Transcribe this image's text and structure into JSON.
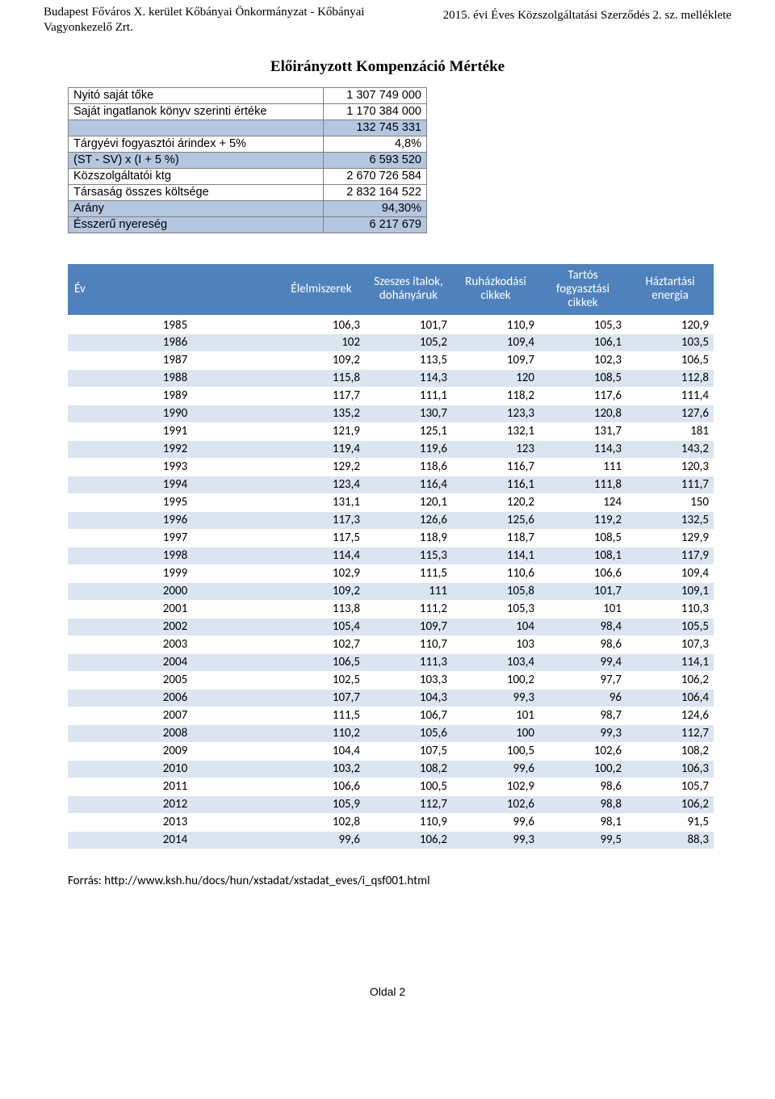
{
  "header": {
    "left": "Budapest Főváros X. kerület Kőbányai Önkormányzat - Kőbányai Vagyonkezelő Zrt.",
    "right": "2015. évi Éves Közszolgáltatási Szerződés 2. sz. melléklete"
  },
  "title": "Előirányzott Kompenzáció Mértéke",
  "summary": {
    "rows": [
      {
        "label": "Nyitó saját tőke",
        "value": "1 307 749 000",
        "highlight": false
      },
      {
        "label": "Saját ingatlanok könyv szerinti értéke",
        "value": "1 170 384 000",
        "highlight": false
      },
      {
        "label": "",
        "value": "132 745 331",
        "highlight": true
      },
      {
        "label": "Tárgyévi fogyasztói árindex + 5%",
        "value": "4,8%",
        "highlight": false
      },
      {
        "label": "(ST - SV) x (I + 5 %)",
        "value": "6 593 520",
        "highlight": true
      },
      {
        "label": "Közszolgáltatói ktg",
        "value": "2 670 726 584",
        "highlight": false
      },
      {
        "label": "Társaság összes költsége",
        "value": "2 832 164 522",
        "highlight": false
      },
      {
        "label": "Arány",
        "value": "94,30%",
        "highlight": true
      },
      {
        "label": "Ésszerű nyereség",
        "value": "6 217 679",
        "highlight": true
      }
    ]
  },
  "dataTable": {
    "columns": [
      "Év",
      "Élelmiszerek",
      "Szeszes italok, dohányáruk",
      "Ruházkodási cikkek",
      "Tartós fogyasztási cikkek",
      "Háztartási energia"
    ],
    "rows": [
      [
        "1985",
        "106,3",
        "101,7",
        "110,9",
        "105,3",
        "120,9"
      ],
      [
        "1986",
        "102",
        "105,2",
        "109,4",
        "106,1",
        "103,5"
      ],
      [
        "1987",
        "109,2",
        "113,5",
        "109,7",
        "102,3",
        "106,5"
      ],
      [
        "1988",
        "115,8",
        "114,3",
        "120",
        "108,5",
        "112,8"
      ],
      [
        "1989",
        "117,7",
        "111,1",
        "118,2",
        "117,6",
        "111,4"
      ],
      [
        "1990",
        "135,2",
        "130,7",
        "123,3",
        "120,8",
        "127,6"
      ],
      [
        "1991",
        "121,9",
        "125,1",
        "132,1",
        "131,7",
        "181"
      ],
      [
        "1992",
        "119,4",
        "119,6",
        "123",
        "114,3",
        "143,2"
      ],
      [
        "1993",
        "129,2",
        "118,6",
        "116,7",
        "111",
        "120,3"
      ],
      [
        "1994",
        "123,4",
        "116,4",
        "116,1",
        "111,8",
        "111,7"
      ],
      [
        "1995",
        "131,1",
        "120,1",
        "120,2",
        "124",
        "150"
      ],
      [
        "1996",
        "117,3",
        "126,6",
        "125,6",
        "119,2",
        "132,5"
      ],
      [
        "1997",
        "117,5",
        "118,9",
        "118,7",
        "108,5",
        "129,9"
      ],
      [
        "1998",
        "114,4",
        "115,3",
        "114,1",
        "108,1",
        "117,9"
      ],
      [
        "1999",
        "102,9",
        "111,5",
        "110,6",
        "106,6",
        "109,4"
      ],
      [
        "2000",
        "109,2",
        "111",
        "105,8",
        "101,7",
        "109,1"
      ],
      [
        "2001",
        "113,8",
        "111,2",
        "105,3",
        "101",
        "110,3"
      ],
      [
        "2002",
        "105,4",
        "109,7",
        "104",
        "98,4",
        "105,5"
      ],
      [
        "2003",
        "102,7",
        "110,7",
        "103",
        "98,6",
        "107,3"
      ],
      [
        "2004",
        "106,5",
        "111,3",
        "103,4",
        "99,4",
        "114,1"
      ],
      [
        "2005",
        "102,5",
        "103,3",
        "100,2",
        "97,7",
        "106,2"
      ],
      [
        "2006",
        "107,7",
        "104,3",
        "99,3",
        "96",
        "106,4"
      ],
      [
        "2007",
        "111,5",
        "106,7",
        "101",
        "98,7",
        "124,6"
      ],
      [
        "2008",
        "110,2",
        "105,6",
        "100",
        "99,3",
        "112,7"
      ],
      [
        "2009",
        "104,4",
        "107,5",
        "100,5",
        "102,6",
        "108,2"
      ],
      [
        "2010",
        "103,2",
        "108,2",
        "99,6",
        "100,2",
        "106,3"
      ],
      [
        "2011",
        "106,6",
        "100,5",
        "102,9",
        "98,6",
        "105,7"
      ],
      [
        "2012",
        "105,9",
        "112,7",
        "102,6",
        "98,8",
        "106,2"
      ],
      [
        "2013",
        "102,8",
        "110,9",
        "99,6",
        "98,1",
        "91,5"
      ],
      [
        "2014",
        "99,6",
        "106,2",
        "99,3",
        "99,5",
        "88,3"
      ]
    ]
  },
  "source": "Forrás: http://www.ksh.hu/docs/hun/xstadat/xstadat_eves/i_qsf001.html",
  "footer": "Oldal 2"
}
